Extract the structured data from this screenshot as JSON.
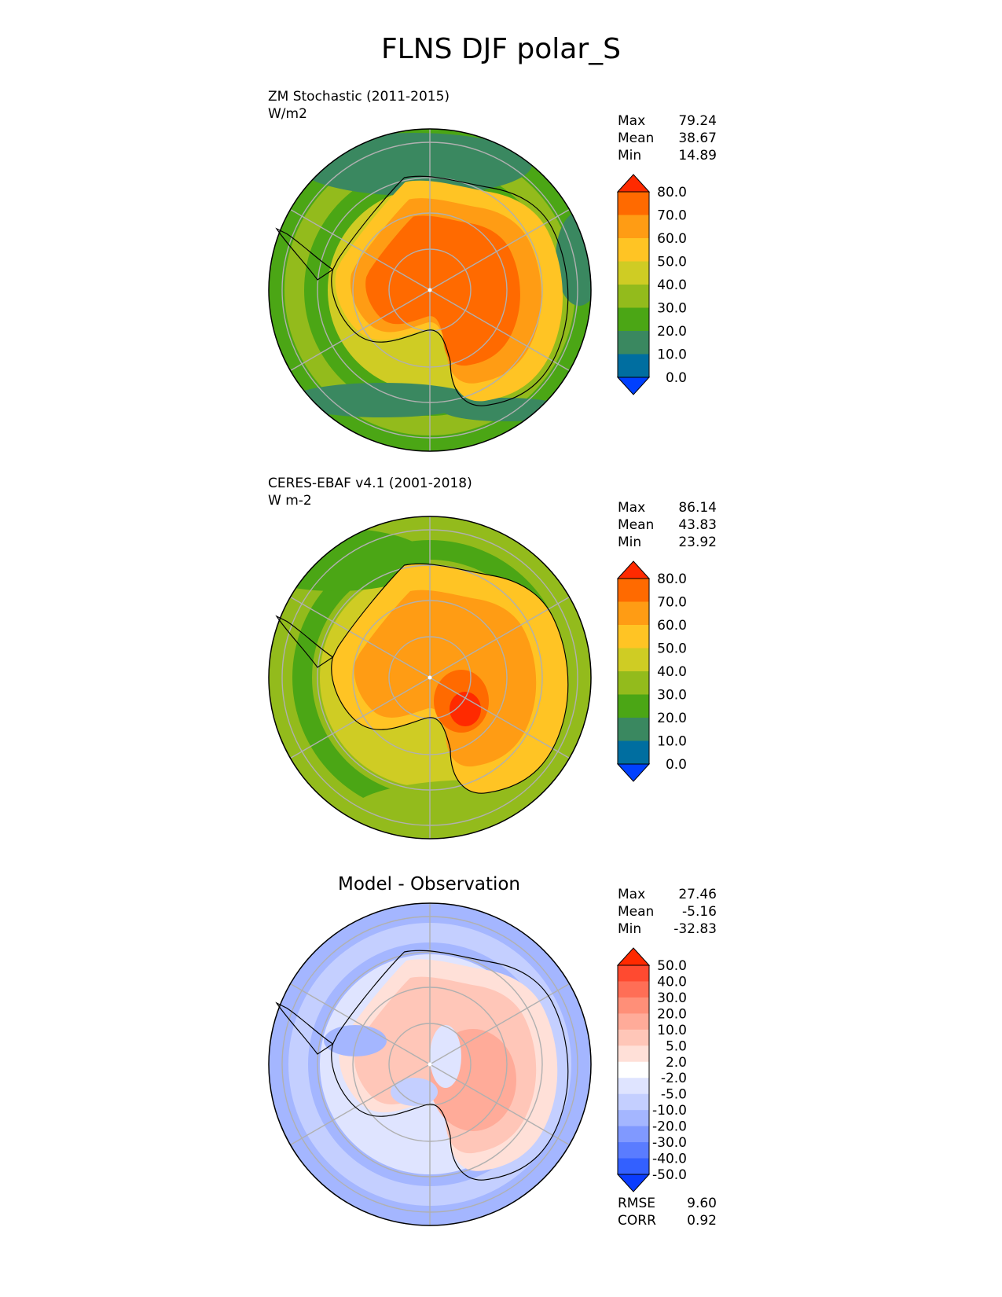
{
  "title": "FLNS DJF polar_S",
  "colors": {
    "land_outline": "#000000",
    "grid": "#b0b0b0",
    "frame": "#000000"
  },
  "chart_data": [
    {
      "type": "heatmap",
      "projection": "south-polar-stereographic",
      "title": "ZM Stochastic (2011-2015)",
      "units": "W/m2",
      "stats": [
        {
          "label": "Max",
          "value": "79.24"
        },
        {
          "label": "Mean",
          "value": "38.67"
        },
        {
          "label": "Min",
          "value": "14.89"
        }
      ],
      "colorbar": {
        "extend": "both",
        "tick_labels": [
          "80.0",
          "70.0",
          "60.0",
          "50.0",
          "40.0",
          "30.0",
          "20.0",
          "10.0",
          "0.0"
        ],
        "colors_top_to_bottom": [
          "#ff2a00",
          "#ff6a00",
          "#ff9c14",
          "#ffc424",
          "#cfcc24",
          "#93bb1c",
          "#4ba615",
          "#3a8860",
          "#006ea0",
          "#0040ff"
        ]
      },
      "field_description_values": {
        "antarctic_interior": 70,
        "coast": 50,
        "ocean_ring": 25,
        "outer_patches": 18
      }
    },
    {
      "type": "heatmap",
      "projection": "south-polar-stereographic",
      "title": "CERES-EBAF v4.1 (2001-2018)",
      "units": "W m-2",
      "stats": [
        {
          "label": "Max",
          "value": "86.14"
        },
        {
          "label": "Mean",
          "value": "43.83"
        },
        {
          "label": "Min",
          "value": "23.92"
        }
      ],
      "colorbar": {
        "extend": "both",
        "tick_labels": [
          "80.0",
          "70.0",
          "60.0",
          "50.0",
          "40.0",
          "30.0",
          "20.0",
          "10.0",
          "0.0"
        ],
        "colors_top_to_bottom": [
          "#ff2a00",
          "#ff6a00",
          "#ff9c14",
          "#ffc424",
          "#cfcc24",
          "#93bb1c",
          "#4ba615",
          "#3a8860",
          "#006ea0",
          "#0040ff"
        ]
      }
    },
    {
      "type": "heatmap",
      "projection": "south-polar-stereographic",
      "title": "Model - Observation",
      "units": "",
      "stats": [
        {
          "label": "Max",
          "value": "27.46"
        },
        {
          "label": "Mean",
          "value": "-5.16"
        },
        {
          "label": "Min",
          "value": "-32.83"
        }
      ],
      "metrics": [
        {
          "label": "RMSE",
          "value": "9.60"
        },
        {
          "label": "CORR",
          "value": "0.92"
        }
      ],
      "colorbar": {
        "extend": "both",
        "tick_labels": [
          "50.0",
          "40.0",
          "30.0",
          "20.0",
          "10.0",
          "5.0",
          "2.0",
          "-2.0",
          "-5.0",
          "-10.0",
          "-20.0",
          "-30.0",
          "-40.0",
          "-50.0"
        ],
        "colors_top_to_bottom": [
          "#ff2a00",
          "#ff4a30",
          "#ff6e56",
          "#ff8f78",
          "#ffab99",
          "#ffc6b8",
          "#ffe0d8",
          "#ffffff",
          "#dfe4ff",
          "#c4cfff",
          "#a4b6ff",
          "#8099ff",
          "#5a7cff",
          "#3360ff",
          "#0a3cff"
        ]
      }
    }
  ]
}
